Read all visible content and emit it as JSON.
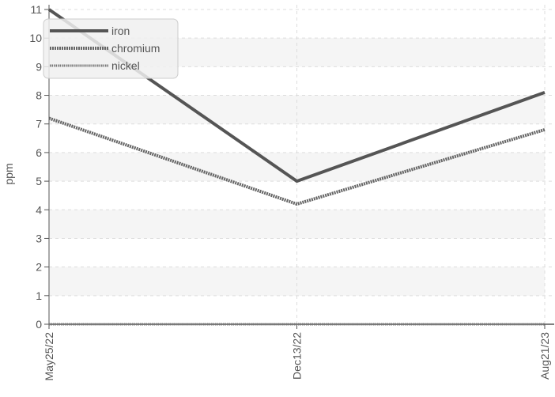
{
  "chart_data": {
    "type": "line",
    "title": "",
    "xlabel": "",
    "ylabel": "ppm",
    "categories": [
      "May25/22",
      "Dec13/22",
      "Aug21/23"
    ],
    "ylim": [
      0,
      11
    ],
    "yticks": [
      0,
      1,
      2,
      3,
      4,
      5,
      6,
      7,
      8,
      9,
      10,
      11
    ],
    "grid": true,
    "legend_position": "top-left",
    "series": [
      {
        "name": "iron",
        "values": [
          11,
          5,
          8.1
        ],
        "style": "solid",
        "color": "#555555"
      },
      {
        "name": "chromium",
        "values": [
          7.2,
          4.2,
          6.8
        ],
        "style": "dotted-thick",
        "color": "#666666"
      },
      {
        "name": "nickel",
        "values": [
          0,
          0,
          0
        ],
        "style": "dotted-thin",
        "color": "#777777"
      }
    ]
  }
}
